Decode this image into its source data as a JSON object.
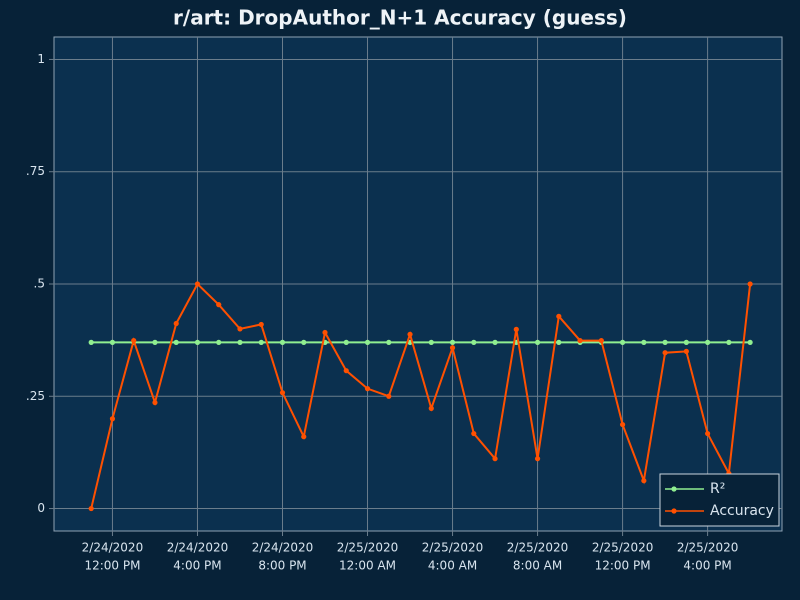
{
  "chart_data": {
    "type": "line",
    "title": "r/art: DropAuthor_N+1 Accuracy (guess)",
    "x": [
      "2020-02-24T11:00",
      "2020-02-24T12:00",
      "2020-02-24T13:00",
      "2020-02-24T14:00",
      "2020-02-24T15:00",
      "2020-02-24T16:00",
      "2020-02-24T17:00",
      "2020-02-24T18:00",
      "2020-02-24T19:00",
      "2020-02-24T20:00",
      "2020-02-24T21:00",
      "2020-02-24T22:00",
      "2020-02-24T23:00",
      "2020-02-25T00:00",
      "2020-02-25T01:00",
      "2020-02-25T02:00",
      "2020-02-25T03:00",
      "2020-02-25T04:00",
      "2020-02-25T05:00",
      "2020-02-25T06:00",
      "2020-02-25T07:00",
      "2020-02-25T08:00",
      "2020-02-25T09:00",
      "2020-02-25T10:00",
      "2020-02-25T11:00",
      "2020-02-25T12:00",
      "2020-02-25T13:00",
      "2020-02-25T14:00",
      "2020-02-25T15:00",
      "2020-02-25T16:00",
      "2020-02-25T17:00",
      "2020-02-25T18:00"
    ],
    "series": [
      {
        "name": "R²",
        "color": "#90ee90",
        "values": [
          0.37,
          0.37,
          0.37,
          0.37,
          0.37,
          0.37,
          0.37,
          0.37,
          0.37,
          0.37,
          0.37,
          0.37,
          0.37,
          0.37,
          0.37,
          0.37,
          0.37,
          0.37,
          0.37,
          0.37,
          0.37,
          0.37,
          0.37,
          0.37,
          0.37,
          0.37,
          0.37,
          0.37,
          0.37,
          0.37,
          0.37,
          0.37
        ]
      },
      {
        "name": "Accuracy",
        "color": "#ff5000",
        "values": [
          0,
          0.2,
          0.374,
          0.236,
          0.412,
          0.5,
          0.454,
          0.4,
          0.41,
          0.258,
          0.16,
          0.392,
          0.307,
          0.267,
          0.25,
          0.388,
          0.223,
          0.358,
          0.167,
          0.111,
          0.399,
          0.111,
          0.428,
          0.374,
          0.374,
          0.187,
          0.062,
          0.347,
          0.35,
          0.167,
          0.078,
          0.5
        ]
      }
    ],
    "xlim": [
      "2020-02-24T09:15",
      "2020-02-25T19:30"
    ],
    "xticks": [
      {
        "value": "2020-02-24T12:00",
        "label": [
          "2/24/2020",
          "12:00 PM"
        ]
      },
      {
        "value": "2020-02-24T16:00",
        "label": [
          "2/24/2020",
          "4:00 PM"
        ]
      },
      {
        "value": "2020-02-24T20:00",
        "label": [
          "2/24/2020",
          "8:00 PM"
        ]
      },
      {
        "value": "2020-02-25T00:00",
        "label": [
          "2/25/2020",
          "12:00 AM"
        ]
      },
      {
        "value": "2020-02-25T04:00",
        "label": [
          "2/25/2020",
          "4:00 AM"
        ]
      },
      {
        "value": "2020-02-25T08:00",
        "label": [
          "2/25/2020",
          "8:00 AM"
        ]
      },
      {
        "value": "2020-02-25T12:00",
        "label": [
          "2/25/2020",
          "12:00 PM"
        ]
      },
      {
        "value": "2020-02-25T16:00",
        "label": [
          "2/25/2020",
          "4:00 PM"
        ]
      }
    ],
    "ylim": [
      -0.05,
      1.05
    ],
    "yticks": [
      0,
      {
        "value": 0.25,
        "label": ".25"
      },
      {
        "value": 0.5,
        "label": ".5"
      },
      {
        "value": 0.75,
        "label": ".75"
      },
      1
    ],
    "grid": true,
    "legend": "lower right"
  }
}
